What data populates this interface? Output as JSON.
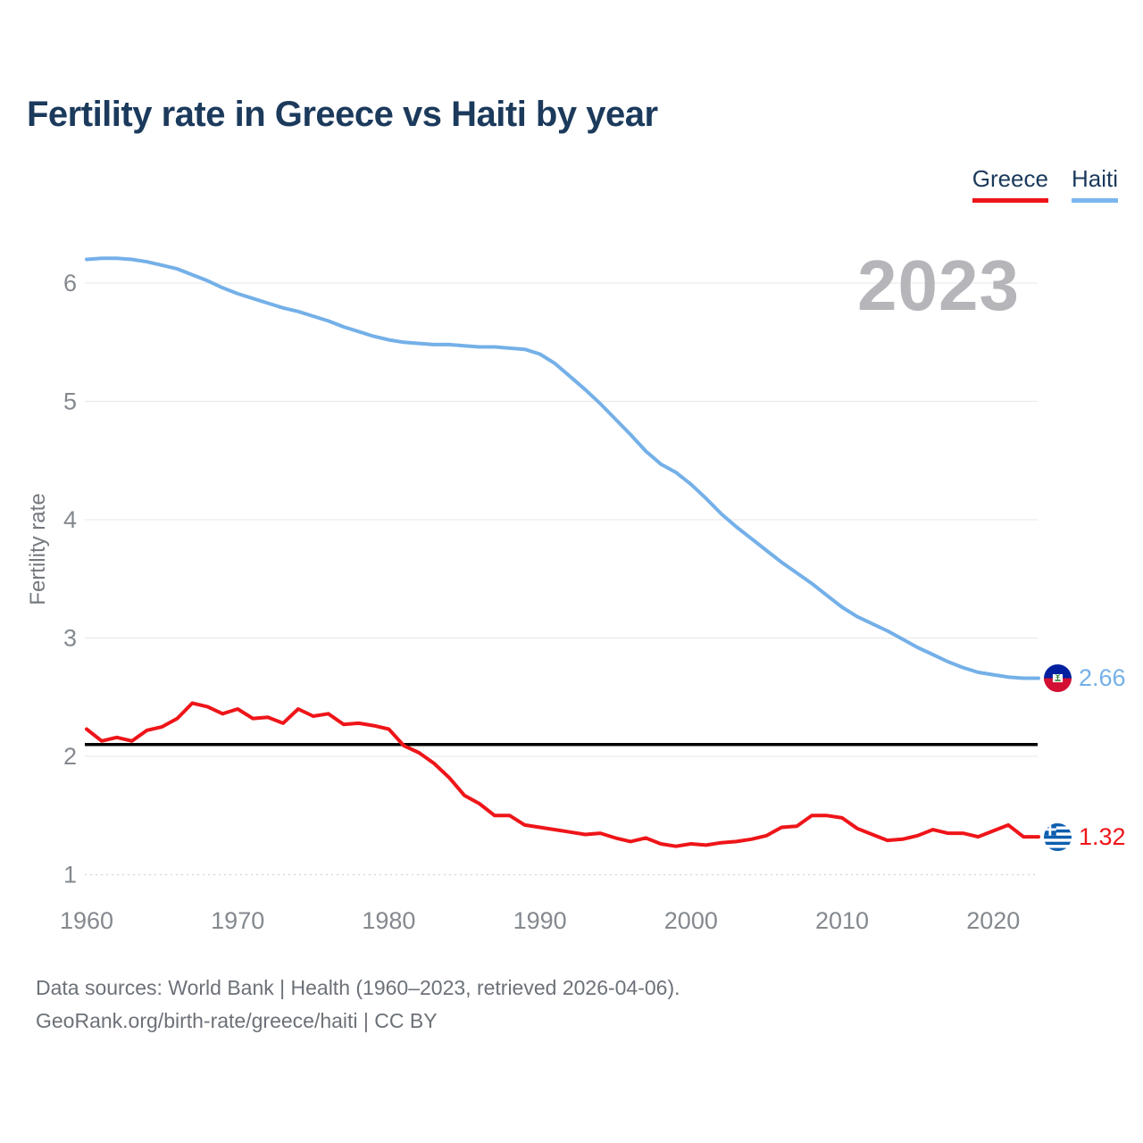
{
  "watermark": "2023",
  "legend": [
    {
      "label": "Greece",
      "color": "#ee1519"
    },
    {
      "label": "Haiti",
      "color": "#7ab7ee"
    }
  ],
  "footer": {
    "line1": "Data sources: World Bank | Health (1960–2023, retrieved 2026-04-06).",
    "line2": "GeoRank.org/birth-rate/greece/haiti | CC BY"
  },
  "chart_data": {
    "type": "line",
    "title": "Fertility rate in Greece vs Haiti by year",
    "xlabel": "",
    "ylabel": "Fertility rate",
    "ylim": [
      1,
      6.3
    ],
    "xlim": [
      1960,
      2023
    ],
    "yticks": [
      1,
      2,
      3,
      4,
      5,
      6
    ],
    "xticks": [
      1960,
      1970,
      1980,
      1990,
      2000,
      2010,
      2020
    ],
    "grid": true,
    "legend_position": "top-right",
    "reference_line": 2.1,
    "x": [
      1960,
      1961,
      1962,
      1963,
      1964,
      1965,
      1966,
      1967,
      1968,
      1969,
      1970,
      1971,
      1972,
      1973,
      1974,
      1975,
      1976,
      1977,
      1978,
      1979,
      1980,
      1981,
      1982,
      1983,
      1984,
      1985,
      1986,
      1987,
      1988,
      1989,
      1990,
      1991,
      1992,
      1993,
      1994,
      1995,
      1996,
      1997,
      1998,
      1999,
      2000,
      2001,
      2002,
      2003,
      2004,
      2005,
      2006,
      2007,
      2008,
      2009,
      2010,
      2011,
      2012,
      2013,
      2014,
      2015,
      2016,
      2017,
      2018,
      2019,
      2020,
      2021,
      2022,
      2023
    ],
    "series": [
      {
        "name": "Haiti",
        "color": "#74b0e8",
        "end_label": "2.66",
        "values": [
          6.2,
          6.21,
          6.21,
          6.2,
          6.18,
          6.15,
          6.12,
          6.07,
          6.02,
          5.96,
          5.91,
          5.87,
          5.83,
          5.79,
          5.76,
          5.72,
          5.68,
          5.63,
          5.59,
          5.55,
          5.52,
          5.5,
          5.49,
          5.48,
          5.48,
          5.47,
          5.46,
          5.46,
          5.45,
          5.44,
          5.4,
          5.32,
          5.21,
          5.1,
          4.98,
          4.85,
          4.72,
          4.58,
          4.47,
          4.4,
          4.3,
          4.18,
          4.05,
          3.94,
          3.84,
          3.74,
          3.64,
          3.55,
          3.46,
          3.36,
          3.26,
          3.18,
          3.12,
          3.06,
          2.99,
          2.92,
          2.86,
          2.8,
          2.75,
          2.71,
          2.69,
          2.67,
          2.66,
          2.66
        ]
      },
      {
        "name": "Greece",
        "color": "#ee1519",
        "end_label": "1.32",
        "values": [
          2.23,
          2.13,
          2.16,
          2.13,
          2.22,
          2.25,
          2.32,
          2.45,
          2.42,
          2.36,
          2.4,
          2.32,
          2.33,
          2.28,
          2.4,
          2.34,
          2.36,
          2.27,
          2.28,
          2.26,
          2.23,
          2.09,
          2.03,
          1.94,
          1.82,
          1.67,
          1.6,
          1.5,
          1.5,
          1.42,
          1.4,
          1.38,
          1.36,
          1.34,
          1.35,
          1.31,
          1.28,
          1.31,
          1.26,
          1.24,
          1.26,
          1.25,
          1.27,
          1.28,
          1.3,
          1.33,
          1.4,
          1.41,
          1.5,
          1.5,
          1.48,
          1.39,
          1.34,
          1.29,
          1.3,
          1.33,
          1.38,
          1.35,
          1.35,
          1.32,
          1.37,
          1.42,
          1.32,
          1.32
        ]
      }
    ]
  }
}
